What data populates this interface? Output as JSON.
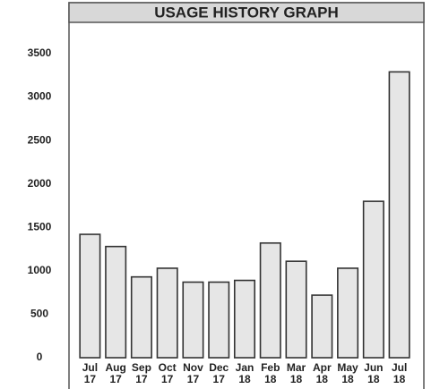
{
  "chart_data": {
    "type": "bar",
    "title": "USAGE HISTORY GRAPH",
    "categories": [
      "Jul 17",
      "Aug 17",
      "Sep 17",
      "Oct 17",
      "Nov 17",
      "Dec 17",
      "Jan 18",
      "Feb 18",
      "Mar 18",
      "Apr 18",
      "May 18",
      "Jun 18",
      "Jul 18"
    ],
    "values": [
      1420,
      1280,
      930,
      1030,
      870,
      870,
      890,
      1320,
      1110,
      720,
      1030,
      1800,
      3290
    ],
    "color": "#e6e6e6",
    "ylim": [
      0,
      3500
    ],
    "yticks": [
      0,
      500,
      1000,
      1500,
      2000,
      2500,
      3000,
      3500
    ],
    "grid": false
  }
}
